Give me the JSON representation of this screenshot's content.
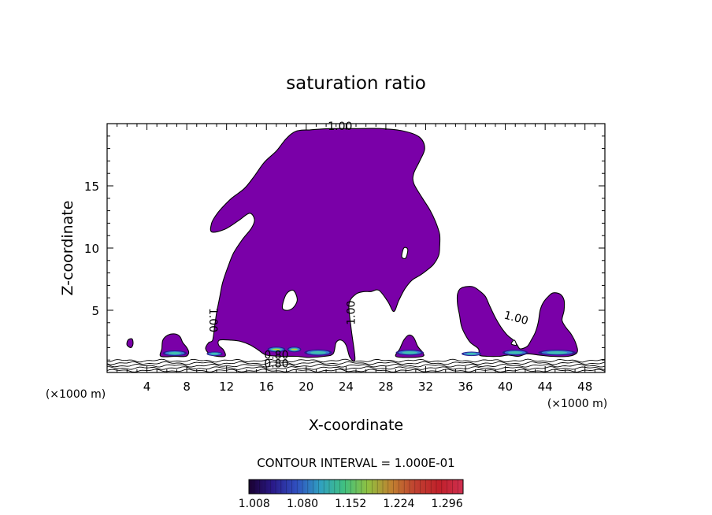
{
  "chart_data": {
    "type": "contour",
    "title": "saturation ratio",
    "xlabel": "X-coordinate",
    "ylabel": "Z-coordinate",
    "x_unit_label": "(×1000 m)",
    "xlim": [
      0,
      50
    ],
    "ylim": [
      0,
      20
    ],
    "x_ticks": [
      4,
      8,
      12,
      16,
      20,
      24,
      28,
      32,
      36,
      40,
      44,
      48
    ],
    "y_ticks": [
      5,
      10,
      15
    ],
    "contour_interval_text": "CONTOUR INTERVAL = 1.000E-01",
    "contour_labels": [
      {
        "text": "1.00",
        "x": 23.4,
        "z": 19.5,
        "rotate": 0
      },
      {
        "text": "1.00",
        "x": 10.3,
        "z": 4.2,
        "rotate": 90
      },
      {
        "text": "1.00",
        "x": 24.9,
        "z": 4.8,
        "rotate": -90
      },
      {
        "text": "1.00",
        "x": 41.0,
        "z": 4.1,
        "rotate": 15
      },
      {
        "text": "0.80",
        "x": 17.0,
        "z": 1.1,
        "rotate": 0
      },
      {
        "text": "0.80",
        "x": 17.0,
        "z": 0.4,
        "rotate": 0
      }
    ],
    "colorbar": {
      "ticks": [
        "1.008",
        "1.080",
        "1.152",
        "1.224",
        "1.296"
      ],
      "range": [
        1.0,
        1.32
      ],
      "stops": [
        "#1a0030",
        "#2a1a8a",
        "#3050c0",
        "#30a0c0",
        "#40c080",
        "#90c040",
        "#c08030",
        "#c04030",
        "#c0202a",
        "#d03050"
      ]
    },
    "fill_color": "#7a00a8",
    "regions": [
      {
        "name": "main-cloud",
        "outline": [
          [
            10.5,
            12
          ],
          [
            10.5,
            11.3
          ],
          [
            11.8,
            11.5
          ],
          [
            13.2,
            12.2
          ],
          [
            14.3,
            12.8
          ],
          [
            14.8,
            12.3
          ],
          [
            14.5,
            11.6
          ],
          [
            13.6,
            10.7
          ],
          [
            12.7,
            9.6
          ],
          [
            12.1,
            8.4
          ],
          [
            11.6,
            7.2
          ],
          [
            11.3,
            6.0
          ],
          [
            11.0,
            4.8
          ],
          [
            10.8,
            3.7
          ],
          [
            10.6,
            2.6
          ],
          [
            10.2,
            2.4
          ],
          [
            9.9,
            1.9
          ],
          [
            10.5,
            1.4
          ],
          [
            11.8,
            1.3
          ],
          [
            11.7,
            1.8
          ],
          [
            11.2,
            2.2
          ],
          [
            11.3,
            2.6
          ],
          [
            12.4,
            2.6
          ],
          [
            13.4,
            2.5
          ],
          [
            14.4,
            2.2
          ],
          [
            15.2,
            1.8
          ],
          [
            16.0,
            1.4
          ],
          [
            17.5,
            1.3
          ],
          [
            19.0,
            1.3
          ],
          [
            20.3,
            1.2
          ],
          [
            21.8,
            1.3
          ],
          [
            22.7,
            1.5
          ],
          [
            23.0,
            2.4
          ],
          [
            23.5,
            2.6
          ],
          [
            24.0,
            2.2
          ],
          [
            24.4,
            1.2
          ],
          [
            24.9,
            1.1
          ],
          [
            24.5,
            3.6
          ],
          [
            24.3,
            5.5
          ],
          [
            25.0,
            6.3
          ],
          [
            25.8,
            6.5
          ],
          [
            26.5,
            6.5
          ],
          [
            27.3,
            6.6
          ],
          [
            28.2,
            5.7
          ],
          [
            28.8,
            4.9
          ],
          [
            29.3,
            5.8
          ],
          [
            29.9,
            6.7
          ],
          [
            30.6,
            7.4
          ],
          [
            31.4,
            7.8
          ],
          [
            32.1,
            8.2
          ],
          [
            32.8,
            8.7
          ],
          [
            33.3,
            9.4
          ],
          [
            33.4,
            10.1
          ],
          [
            33.4,
            11.1
          ],
          [
            33.0,
            12.1
          ],
          [
            32.4,
            13.1
          ],
          [
            31.6,
            14.1
          ],
          [
            30.8,
            15.2
          ],
          [
            30.8,
            16.0
          ],
          [
            31.4,
            17.0
          ],
          [
            31.9,
            18.0
          ],
          [
            31.4,
            18.9
          ],
          [
            29.8,
            19.4
          ],
          [
            27.5,
            19.6
          ],
          [
            25.0,
            19.6
          ],
          [
            22.4,
            19.6
          ],
          [
            20.4,
            19.5
          ],
          [
            19.0,
            19.4
          ],
          [
            18.0,
            18.8
          ],
          [
            17.0,
            17.8
          ],
          [
            15.8,
            16.9
          ],
          [
            14.8,
            15.8
          ],
          [
            13.8,
            14.8
          ],
          [
            12.5,
            14.0
          ],
          [
            11.5,
            13.2
          ],
          [
            10.9,
            12.6
          ]
        ]
      },
      {
        "name": "right-cloud",
        "outline": [
          [
            35.6,
            6.8
          ],
          [
            36.7,
            6.9
          ],
          [
            37.5,
            6.5
          ],
          [
            38.0,
            6.1
          ],
          [
            38.4,
            5.4
          ],
          [
            39.0,
            4.4
          ],
          [
            39.6,
            3.6
          ],
          [
            40.2,
            3.0
          ],
          [
            40.8,
            2.6
          ],
          [
            41.2,
            2.2
          ],
          [
            41.5,
            1.9
          ],
          [
            42.2,
            2.1
          ],
          [
            42.6,
            2.6
          ],
          [
            43.0,
            3.2
          ],
          [
            43.3,
            4.0
          ],
          [
            43.5,
            5.0
          ],
          [
            43.8,
            5.6
          ],
          [
            44.3,
            6.1
          ],
          [
            44.8,
            6.4
          ],
          [
            45.5,
            6.3
          ],
          [
            45.9,
            5.8
          ],
          [
            45.9,
            5.0
          ],
          [
            45.7,
            4.2
          ],
          [
            46.1,
            3.6
          ],
          [
            46.6,
            3.1
          ],
          [
            47.1,
            2.3
          ],
          [
            47.2,
            1.6
          ],
          [
            46.3,
            1.3
          ],
          [
            44.6,
            1.3
          ],
          [
            43.4,
            1.4
          ],
          [
            42.2,
            1.5
          ],
          [
            41.3,
            1.3
          ],
          [
            40.3,
            1.4
          ],
          [
            39.4,
            1.3
          ],
          [
            38.2,
            1.3
          ],
          [
            37.4,
            1.4
          ],
          [
            37.3,
            1.9
          ],
          [
            36.5,
            2.4
          ],
          [
            36.0,
            3.0
          ],
          [
            35.6,
            3.7
          ],
          [
            35.4,
            4.6
          ],
          [
            35.2,
            5.5
          ],
          [
            35.2,
            6.3
          ]
        ]
      },
      {
        "name": "cloud-6km",
        "outline": [
          [
            5.4,
            1.3
          ],
          [
            5.5,
            1.9
          ],
          [
            5.6,
            2.6
          ],
          [
            6.1,
            3.0
          ],
          [
            6.8,
            3.1
          ],
          [
            7.3,
            2.9
          ],
          [
            7.6,
            2.4
          ],
          [
            8.0,
            2.0
          ],
          [
            8.2,
            1.6
          ],
          [
            7.9,
            1.3
          ],
          [
            6.8,
            1.3
          ]
        ]
      },
      {
        "name": "cloud-31km",
        "outline": [
          [
            29.0,
            1.3
          ],
          [
            29.4,
            1.9
          ],
          [
            29.8,
            2.6
          ],
          [
            30.3,
            3.0
          ],
          [
            30.8,
            2.8
          ],
          [
            31.2,
            2.1
          ],
          [
            31.7,
            1.6
          ],
          [
            31.7,
            1.3
          ],
          [
            30.3,
            1.2
          ]
        ]
      },
      {
        "name": "speck-2km",
        "outline": [
          [
            2.0,
            2.2
          ],
          [
            2.1,
            2.6
          ],
          [
            2.5,
            2.7
          ],
          [
            2.6,
            2.3
          ],
          [
            2.4,
            2.0
          ]
        ]
      }
    ],
    "holes": [
      {
        "name": "hole-18-6",
        "outline": [
          [
            17.6,
            5.2
          ],
          [
            18.0,
            6.3
          ],
          [
            18.7,
            6.6
          ],
          [
            19.1,
            5.9
          ],
          [
            18.8,
            5.3
          ],
          [
            18.2,
            5.0
          ]
        ]
      },
      {
        "name": "hole-29-9",
        "outline": [
          [
            29.6,
            9.3
          ],
          [
            29.8,
            10.0
          ],
          [
            30.2,
            9.9
          ],
          [
            30.0,
            9.2
          ]
        ]
      },
      {
        "name": "hole-40-3",
        "outline": [
          [
            40.6,
            2.3
          ],
          [
            40.9,
            2.6
          ],
          [
            41.1,
            2.2
          ]
        ]
      }
    ],
    "hotspots": [
      {
        "x": 6.8,
        "z": 1.55,
        "w": 2.4,
        "h": 0.45,
        "level": 0.45
      },
      {
        "x": 10.8,
        "z": 1.5,
        "w": 1.6,
        "h": 0.35,
        "level": 0.3
      },
      {
        "x": 17.0,
        "z": 1.85,
        "w": 1.8,
        "h": 0.45,
        "level": 0.75
      },
      {
        "x": 18.8,
        "z": 1.85,
        "w": 1.4,
        "h": 0.45,
        "level": 0.7
      },
      {
        "x": 21.2,
        "z": 1.6,
        "w": 2.8,
        "h": 0.5,
        "level": 0.55
      },
      {
        "x": 30.4,
        "z": 1.6,
        "w": 2.8,
        "h": 0.45,
        "level": 0.5
      },
      {
        "x": 36.6,
        "z": 1.5,
        "w": 2.0,
        "h": 0.35,
        "level": 0.35
      },
      {
        "x": 41.0,
        "z": 1.6,
        "w": 2.6,
        "h": 0.45,
        "level": 0.5
      },
      {
        "x": 45.2,
        "z": 1.6,
        "w": 3.8,
        "h": 0.45,
        "level": 0.45
      }
    ],
    "subsaturated_layers_z": [
      0.15,
      0.35,
      0.55,
      0.75,
      0.95
    ]
  }
}
